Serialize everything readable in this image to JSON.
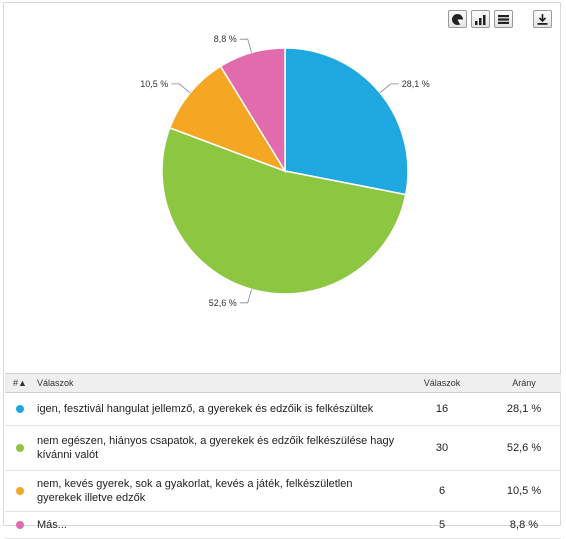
{
  "toolbar": {
    "buttons": [
      {
        "name": "pie-chart-icon"
      },
      {
        "name": "bar-chart-icon"
      },
      {
        "name": "table-icon"
      },
      {
        "name": "download-icon"
      }
    ]
  },
  "chart_data": {
    "type": "pie",
    "title": "",
    "slices": [
      {
        "label": "igen, fesztivál hangulat jellemző, a gyerekek és edzőik is felkészültek",
        "value": 16,
        "percent_label": "28,1 %",
        "color": "#1fa7df"
      },
      {
        "label": "nem egészen, hiányos csapatok, a gyerekek és edzőik felkészülése hagy kívánni valót",
        "value": 30,
        "percent_label": "52,6 %",
        "color": "#8dc641"
      },
      {
        "label": "nem, kevés gyerek, sok a gyakorlat, kevés a játék, felkészületlen gyerekek illetve edzők",
        "value": 6,
        "percent_label": "10,5 %",
        "color": "#f5a623"
      },
      {
        "label": "Más...",
        "value": 5,
        "percent_label": "8,8 %",
        "color": "#e26bad"
      }
    ]
  },
  "table": {
    "headers": {
      "num": "#▲",
      "answers": "Válaszok",
      "count": "Válaszok",
      "ratio": "Arány"
    },
    "rows": [
      {
        "answer": "igen, fesztivál hangulat jellemző, a gyerekek és edzőik is felkészültek",
        "count": "16",
        "ratio": "28,1 %",
        "color": "#1fa7df"
      },
      {
        "answer": "nem egészen, hiányos csapatok, a gyerekek és edzőik felkészülése hagy kívánni valót",
        "count": "30",
        "ratio": "52,6 %",
        "color": "#8dc641"
      },
      {
        "answer": "nem, kevés gyerek, sok a gyakorlat, kevés a játék, felkészületlen gyerekek illetve edzők",
        "count": "6",
        "ratio": "10,5 %",
        "color": "#f5a623"
      },
      {
        "answer": "Más...",
        "count": "5",
        "ratio": "8,8 %",
        "color": "#e26bad"
      }
    ]
  }
}
